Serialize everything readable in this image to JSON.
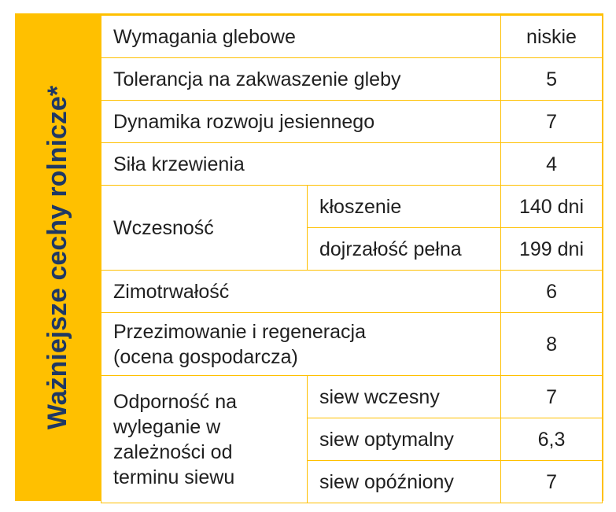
{
  "sidebar": {
    "title": "Ważniejsze cechy rolnicze*"
  },
  "rows": {
    "soil": {
      "label": "Wymagania glebowe",
      "value": "niskie"
    },
    "acid": {
      "label": "Tolerancja na zakwaszenie gleby",
      "value": "5"
    },
    "autumn": {
      "label": "Dynamika rozwoju jesiennego",
      "value": "7"
    },
    "tillering": {
      "label": "Siła krzewienia",
      "value": "4"
    },
    "earliness": {
      "label": "Wczesność",
      "sub": [
        {
          "label": "kłoszenie",
          "value": "140 dni"
        },
        {
          "label": "dojrzałość pełna",
          "value": "199 dni"
        }
      ]
    },
    "winter": {
      "label": "Zimotrwałość",
      "value": "6"
    },
    "overwinter": {
      "label_line1": "Przezimowanie i regeneracja",
      "label_line2": "(ocena gospodarcza)",
      "value": "8"
    },
    "lodging": {
      "label_line1": "Odporność na",
      "label_line2": "wyleganie w",
      "label_line3": "zależności od",
      "label_line4": "terminu siewu",
      "sub": [
        {
          "label": "siew wczesny",
          "value": "7"
        },
        {
          "label": "siew optymalny",
          "value": "6,3"
        },
        {
          "label": "siew opóźniony",
          "value": "7"
        }
      ]
    }
  }
}
